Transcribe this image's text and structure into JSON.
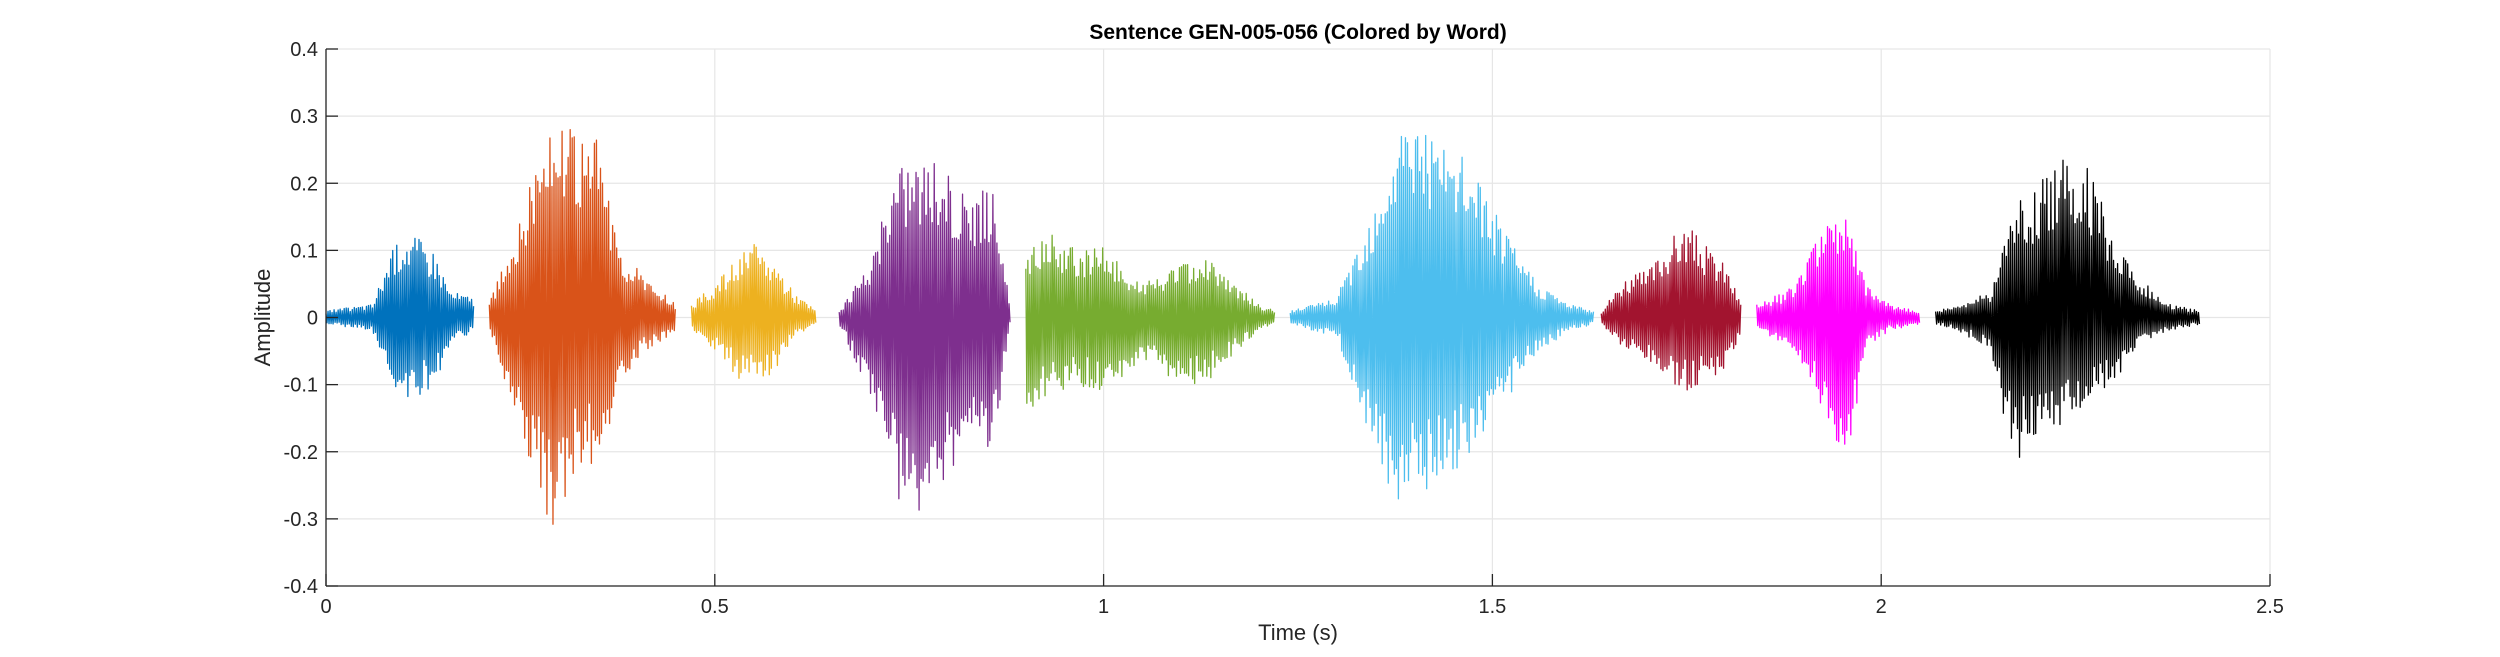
{
  "chart_data": {
    "type": "line",
    "title": "Sentence GEN-005-056 (Colored by Word)",
    "xlabel": "Time (s)",
    "ylabel": "Amplitude",
    "xlim": [
      0,
      2.5
    ],
    "ylim": [
      -0.4,
      0.4
    ],
    "x_ticks": [
      0,
      0.5,
      1,
      1.5,
      2,
      2.5
    ],
    "x_tick_labels": [
      "0",
      "0.5",
      "1",
      "1.5",
      "2",
      "2.5"
    ],
    "y_ticks": [
      -0.4,
      -0.3,
      -0.2,
      -0.1,
      0,
      0.1,
      0.2,
      0.3,
      0.4
    ],
    "y_tick_labels": [
      "-0.4",
      "-0.3",
      "-0.2",
      "-0.1",
      "0",
      "0.1",
      "0.2",
      "0.3",
      "0.4"
    ],
    "grid": true,
    "legend": "none",
    "series": [
      {
        "color": "#0072BD",
        "x": [
          0.0,
          0.06,
          0.08,
          0.1,
          0.12,
          0.14,
          0.16,
          0.19
        ],
        "envelope_upper": [
          0.01,
          0.02,
          0.09,
          0.13,
          0.12,
          0.1,
          0.04,
          0.03
        ],
        "envelope_lower": [
          -0.01,
          -0.02,
          -0.09,
          -0.12,
          -0.12,
          -0.1,
          -0.04,
          -0.02
        ]
      },
      {
        "color": "#D95319",
        "x": [
          0.21,
          0.24,
          0.27,
          0.29,
          0.3,
          0.33,
          0.35,
          0.38,
          0.41,
          0.45
        ],
        "envelope_upper": [
          0.02,
          0.12,
          0.24,
          0.33,
          0.3,
          0.26,
          0.27,
          0.1,
          0.06,
          0.02
        ],
        "envelope_lower": [
          -0.02,
          -0.13,
          -0.25,
          -0.32,
          -0.3,
          -0.22,
          -0.24,
          -0.1,
          -0.05,
          -0.02
        ]
      },
      {
        "color": "#EDB120",
        "x": [
          0.47,
          0.5,
          0.53,
          0.55,
          0.58,
          0.6,
          0.63
        ],
        "envelope_upper": [
          0.02,
          0.05,
          0.09,
          0.11,
          0.08,
          0.04,
          0.01
        ],
        "envelope_lower": [
          -0.02,
          -0.05,
          -0.09,
          -0.1,
          -0.08,
          -0.03,
          -0.01
        ]
      },
      {
        "color": "#7E2F8E",
        "x": [
          0.66,
          0.7,
          0.73,
          0.75,
          0.78,
          0.81,
          0.84,
          0.86,
          0.88
        ],
        "envelope_upper": [
          0.01,
          0.08,
          0.22,
          0.25,
          0.24,
          0.2,
          0.19,
          0.2,
          0.01
        ],
        "envelope_lower": [
          -0.01,
          -0.12,
          -0.26,
          -0.31,
          -0.26,
          -0.22,
          -0.2,
          -0.19,
          -0.01
        ]
      },
      {
        "color": "#77AC30",
        "x": [
          0.9,
          0.93,
          0.97,
          1.0,
          1.05,
          1.1,
          1.13,
          1.17,
          1.2,
          1.22
        ],
        "envelope_upper": [
          0.1,
          0.13,
          0.1,
          0.11,
          0.05,
          0.08,
          0.09,
          0.05,
          0.02,
          0.01
        ],
        "envelope_lower": [
          -0.15,
          -0.12,
          -0.1,
          -0.12,
          -0.06,
          -0.1,
          -0.1,
          -0.05,
          -0.02,
          -0.01
        ]
      },
      {
        "color": "#4DBEEE",
        "x": [
          1.24,
          1.3,
          1.34,
          1.38,
          1.4,
          1.43,
          1.47,
          1.52,
          1.56,
          1.6,
          1.63
        ],
        "envelope_upper": [
          0.01,
          0.03,
          0.15,
          0.29,
          0.32,
          0.26,
          0.24,
          0.12,
          0.05,
          0.02,
          0.01
        ],
        "envelope_lower": [
          -0.01,
          -0.03,
          -0.17,
          -0.3,
          -0.28,
          -0.24,
          -0.22,
          -0.12,
          -0.05,
          -0.02,
          -0.01
        ]
      },
      {
        "color": "#A2142F",
        "x": [
          1.64,
          1.67,
          1.7,
          1.73,
          1.75,
          1.78,
          1.8,
          1.82
        ],
        "envelope_upper": [
          0.01,
          0.06,
          0.07,
          0.12,
          0.14,
          0.1,
          0.08,
          0.02
        ],
        "envelope_lower": [
          -0.01,
          -0.05,
          -0.07,
          -0.1,
          -0.11,
          -0.09,
          -0.08,
          -0.02
        ]
      },
      {
        "color": "#FF00FF",
        "x": [
          1.84,
          1.88,
          1.91,
          1.94,
          1.96,
          1.98,
          2.01,
          2.05
        ],
        "envelope_upper": [
          0.02,
          0.04,
          0.1,
          0.16,
          0.15,
          0.05,
          0.02,
          0.01
        ],
        "envelope_lower": [
          -0.02,
          -0.04,
          -0.1,
          -0.19,
          -0.2,
          -0.05,
          -0.02,
          -0.01
        ]
      },
      {
        "color": "#000000",
        "x": [
          2.07,
          2.1,
          2.14,
          2.17,
          2.2,
          2.24,
          2.27,
          2.3,
          2.33,
          2.37,
          2.41
        ],
        "envelope_upper": [
          0.01,
          0.02,
          0.04,
          0.17,
          0.2,
          0.26,
          0.22,
          0.12,
          0.06,
          0.02,
          0.01
        ],
        "envelope_lower": [
          -0.01,
          -0.02,
          -0.05,
          -0.22,
          -0.2,
          -0.15,
          -0.12,
          -0.1,
          -0.04,
          -0.02,
          -0.01
        ]
      }
    ]
  }
}
